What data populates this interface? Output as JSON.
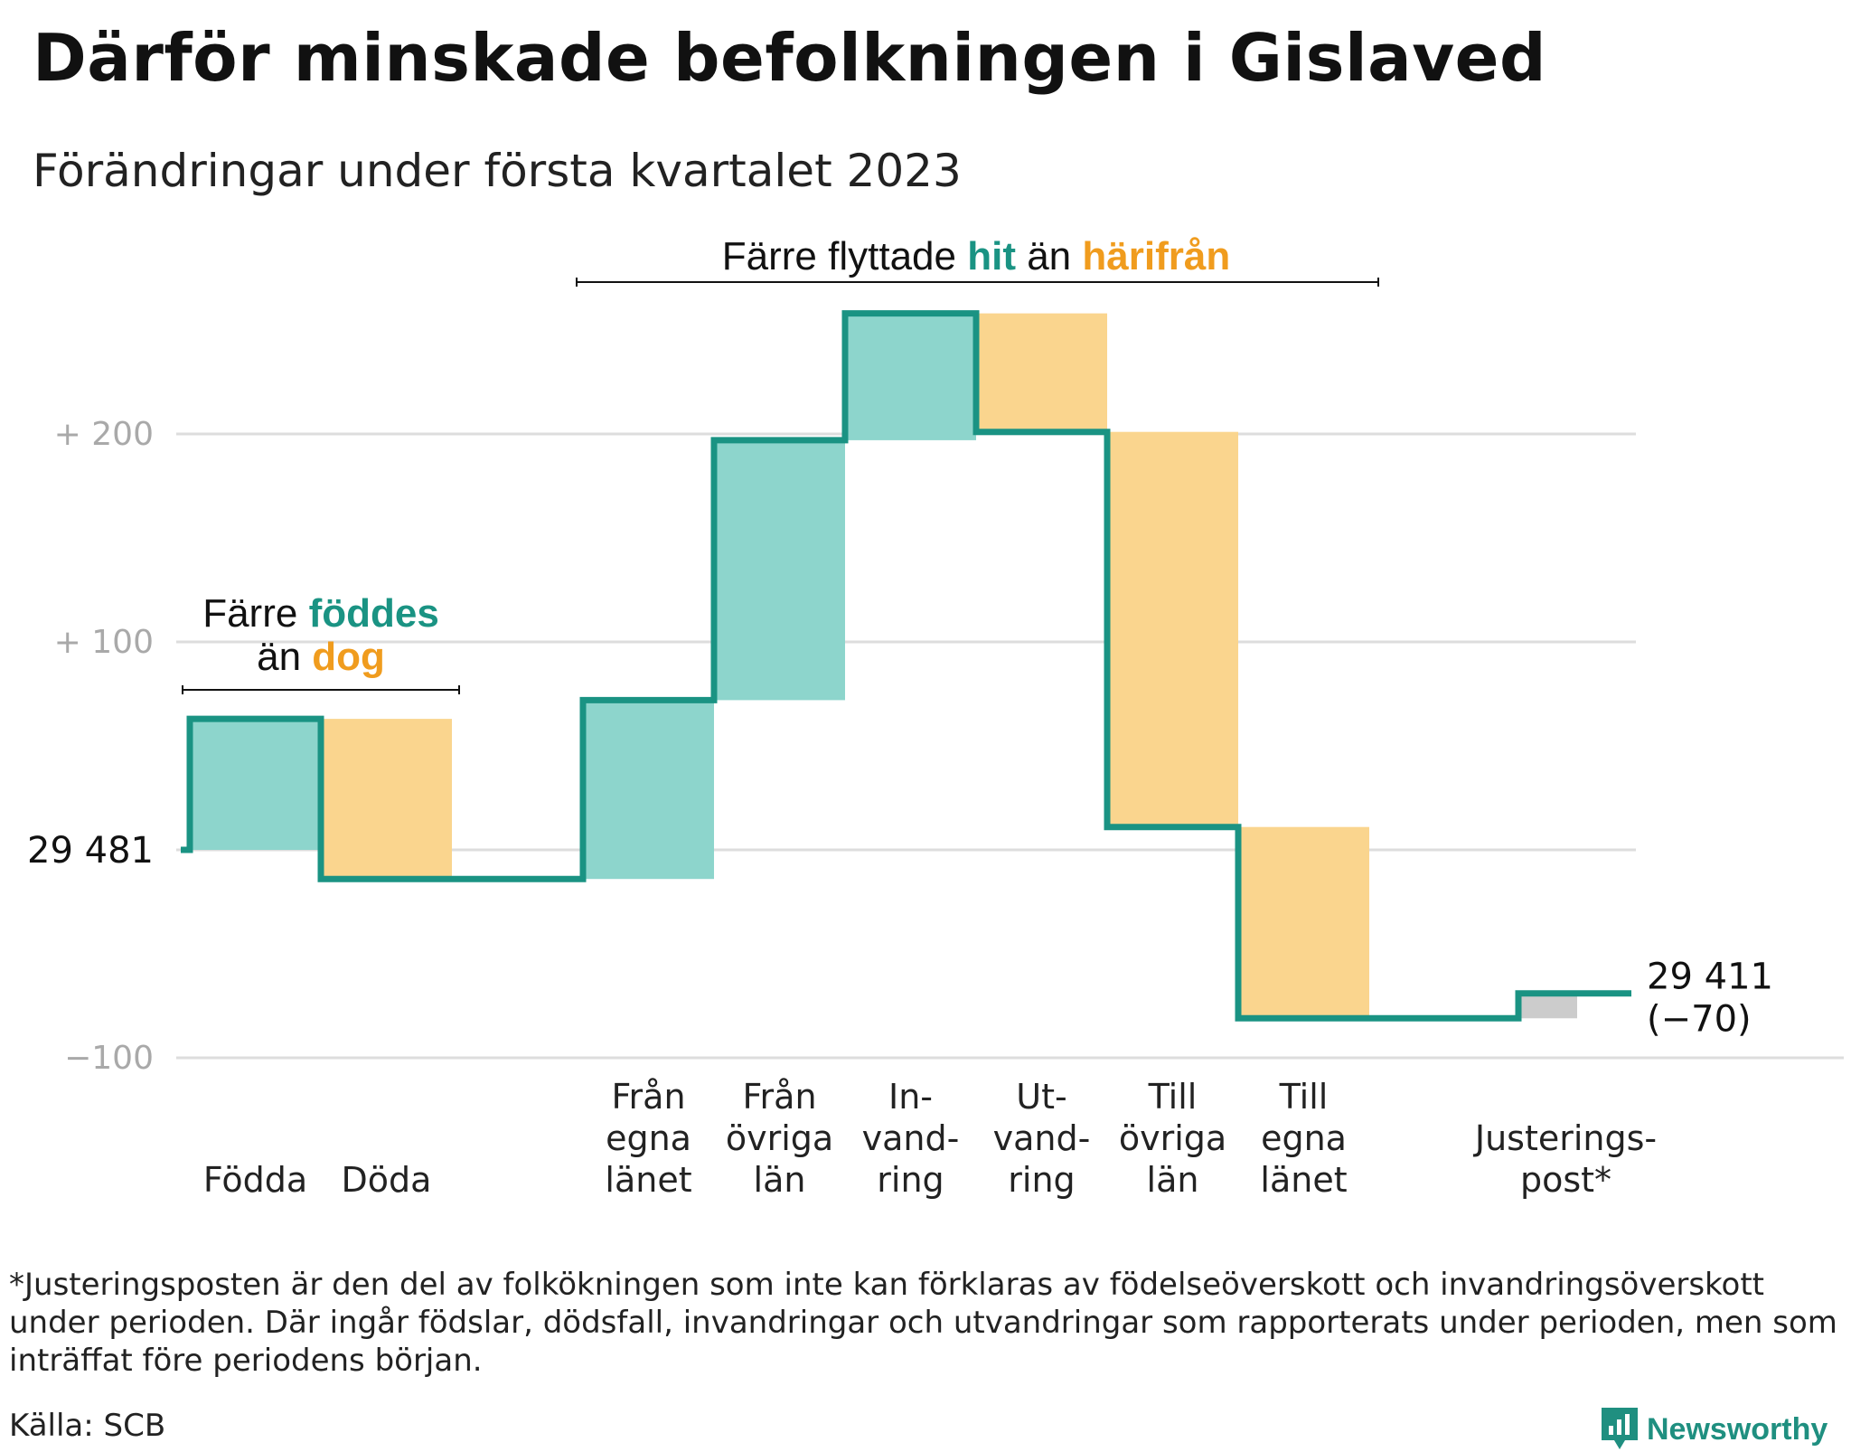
{
  "title": "Därför minskade befolkningen i Gislaved",
  "subtitle": "Förändringar under första kvartalet 2023",
  "colors": {
    "inflow_line": "#1a9383",
    "inflow_fill": "#8dd5cc",
    "outflow_fill": "#fad58e",
    "outflow_text": "#f09c1e",
    "adjust_fill": "#cccccc",
    "grid": "#dddddd"
  },
  "chart_data": {
    "type": "waterfall",
    "start_value": 29481,
    "start_label": "29 481",
    "end_value": 29411,
    "end_label": "29 411",
    "end_change_label": "(−70)",
    "y_ticks": [
      {
        "value": 200,
        "label": "+ 200"
      },
      {
        "value": 100,
        "label": "+ 100"
      },
      {
        "value": -100,
        "label": "−100"
      }
    ],
    "ylim": [
      -100,
      260
    ],
    "grid": true,
    "categories": [
      {
        "lines": [
          "Födda"
        ],
        "change": 63,
        "kind": "in"
      },
      {
        "lines": [
          "Döda"
        ],
        "change": -77,
        "kind": "out"
      },
      {
        "lines": [],
        "change": 0,
        "kind": "gap"
      },
      {
        "lines": [
          "Från",
          "egna",
          "länet"
        ],
        "change": 86,
        "kind": "in"
      },
      {
        "lines": [
          "Från",
          "övriga",
          "län"
        ],
        "change": 125,
        "kind": "in"
      },
      {
        "lines": [
          "In-",
          "vand-",
          "ring"
        ],
        "change": 61,
        "kind": "in"
      },
      {
        "lines": [
          "Ut-",
          "vand-",
          "ring"
        ],
        "change": -57,
        "kind": "out"
      },
      {
        "lines": [
          "Till",
          "övriga",
          "län"
        ],
        "change": -190,
        "kind": "out"
      },
      {
        "lines": [
          "Till",
          "egna",
          "länet"
        ],
        "change": -92,
        "kind": "out"
      },
      {
        "lines": [],
        "change": 0,
        "kind": "gap"
      },
      {
        "lines": [
          "Justerings-",
          "post*"
        ],
        "change": 12,
        "kind": "adjust"
      }
    ],
    "annotations": {
      "births": {
        "line1_parts": [
          {
            "text": "Färre ",
            "style": "plain"
          },
          {
            "text": "föddes",
            "style": "in"
          }
        ],
        "line2_parts": [
          {
            "text": "än ",
            "style": "plain"
          },
          {
            "text": "dog",
            "style": "out"
          }
        ]
      },
      "migration": {
        "line1_parts": [
          {
            "text": "Färre flyttade ",
            "style": "plain"
          },
          {
            "text": "hit",
            "style": "in"
          },
          {
            "text": " än ",
            "style": "plain"
          },
          {
            "text": "härifrån",
            "style": "out"
          }
        ]
      }
    }
  },
  "footnote": "*Justeringsposten är den del av folkökningen som inte kan förklaras av födelseöverskott och invandringsöverskott under perioden. Där ingår födslar, dödsfall, invandringar och utvandringar som rapporterats under perioden, men som inträffat före periodens början.",
  "source": "Källa: SCB",
  "brand": {
    "name": "Newsworthy",
    "icon": "newsworthy-chart-bubble-icon"
  }
}
